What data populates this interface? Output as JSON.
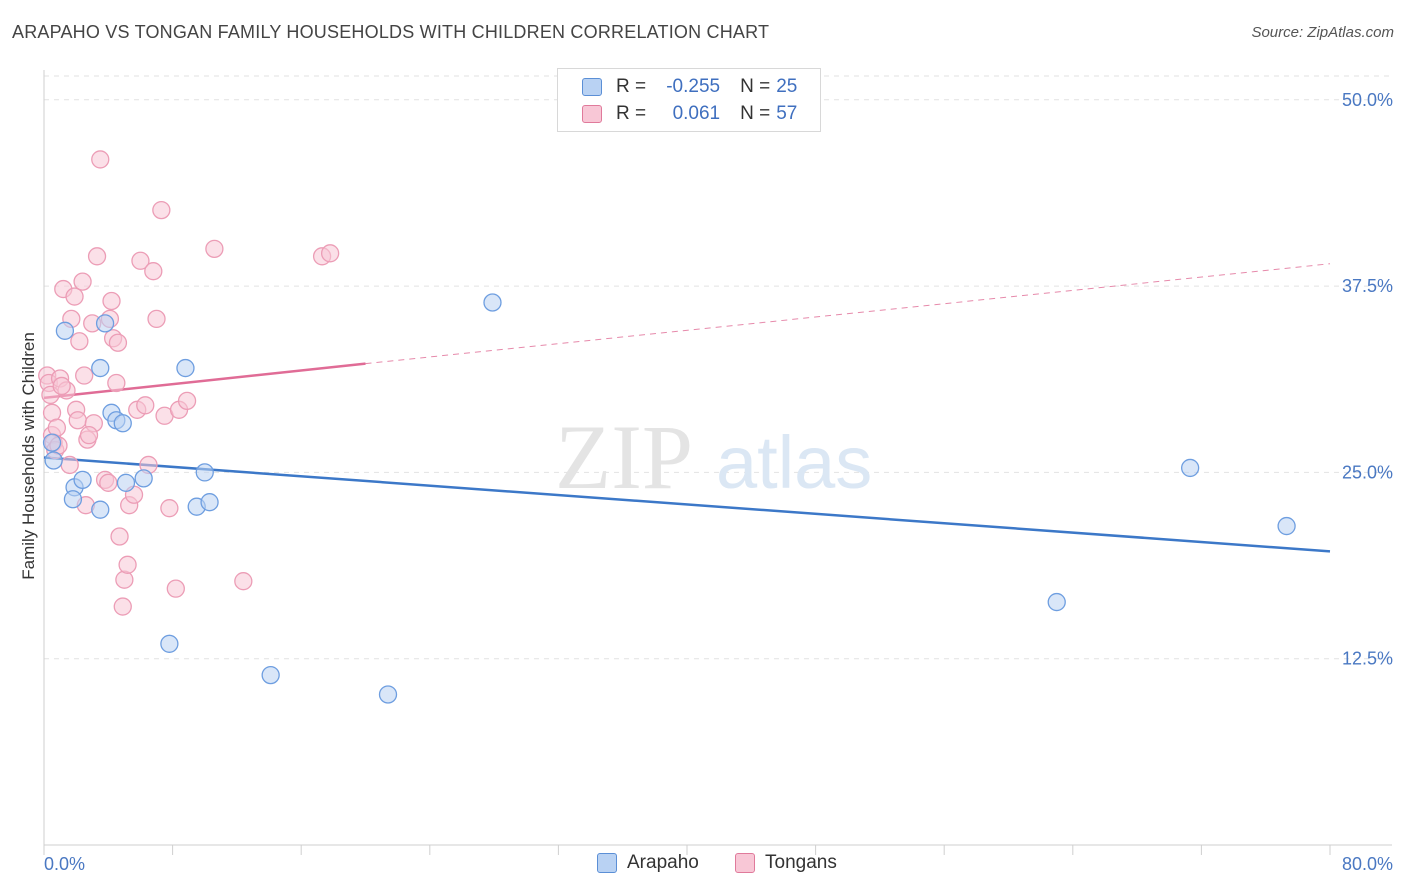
{
  "title": "ARAPAHO VS TONGAN FAMILY HOUSEHOLDS WITH CHILDREN CORRELATION CHART",
  "source": "Source: ZipAtlas.com",
  "watermark": {
    "zip": "ZIP",
    "atlas": "atlas"
  },
  "legend_box": {
    "rows": [
      {
        "r_label": "R =",
        "r_value": "-0.255",
        "n_label": "N =",
        "n_value": "25",
        "color": "#5b8fd6",
        "fill": "#b9d2f3"
      },
      {
        "r_label": "R =",
        "r_value": "0.061",
        "n_label": "N =",
        "n_value": "57",
        "color": "#e07a9b",
        "fill": "#f8c7d6"
      }
    ]
  },
  "chart_data": {
    "type": "scatter",
    "title": "ARAPAHO VS TONGAN FAMILY HOUSEHOLDS WITH CHILDREN CORRELATION CHART",
    "xlabel": "",
    "ylabel": "Family Households with Children",
    "xlim": [
      0,
      80
    ],
    "ylim": [
      0,
      52
    ],
    "x_tick_labels": [
      "0.0%",
      "80.0%"
    ],
    "y_ticks": [
      {
        "value": 12.5,
        "label": "12.5%"
      },
      {
        "value": 25.0,
        "label": "25.0%"
      },
      {
        "value": 37.5,
        "label": "37.5%"
      },
      {
        "value": 50.0,
        "label": "50.0%"
      }
    ],
    "series": [
      {
        "name": "Arapaho",
        "color": "#3c78c8",
        "fill": "#b9d2f3",
        "stroke": "#6e9ee0",
        "points": [
          [
            0.5,
            27.0
          ],
          [
            0.6,
            25.8
          ],
          [
            1.3,
            34.5
          ],
          [
            1.9,
            24.0
          ],
          [
            1.8,
            23.2
          ],
          [
            2.4,
            24.5
          ],
          [
            3.5,
            32.0
          ],
          [
            3.8,
            35.0
          ],
          [
            3.5,
            22.5
          ],
          [
            4.2,
            29.0
          ],
          [
            4.5,
            28.5
          ],
          [
            4.9,
            28.3
          ],
          [
            5.1,
            24.3
          ],
          [
            6.2,
            24.6
          ],
          [
            7.8,
            13.5
          ],
          [
            8.8,
            32.0
          ],
          [
            9.5,
            22.7
          ],
          [
            10.0,
            25.0
          ],
          [
            10.3,
            23.0
          ],
          [
            14.1,
            11.4
          ],
          [
            21.4,
            10.1
          ],
          [
            27.9,
            36.4
          ],
          [
            63.0,
            16.3
          ],
          [
            71.3,
            25.3
          ],
          [
            77.3,
            21.4
          ]
        ],
        "trend": {
          "x": [
            0,
            80
          ],
          "y": [
            26.0,
            19.7
          ],
          "dashed": false
        }
      },
      {
        "name": "Tongans",
        "color": "#e06c96",
        "fill": "#f8c7d6",
        "stroke": "#ec9db6",
        "points": [
          [
            0.2,
            31.5
          ],
          [
            0.3,
            31.0
          ],
          [
            0.4,
            30.2
          ],
          [
            0.5,
            29.0
          ],
          [
            0.5,
            27.5
          ],
          [
            0.6,
            27.0
          ],
          [
            0.7,
            26.5
          ],
          [
            0.8,
            28.0
          ],
          [
            1.0,
            31.3
          ],
          [
            1.2,
            37.3
          ],
          [
            1.4,
            30.5
          ],
          [
            1.6,
            25.5
          ],
          [
            1.7,
            35.3
          ],
          [
            1.9,
            36.8
          ],
          [
            2.0,
            29.2
          ],
          [
            2.1,
            28.5
          ],
          [
            2.2,
            33.8
          ],
          [
            2.4,
            37.8
          ],
          [
            2.5,
            31.5
          ],
          [
            2.6,
            22.8
          ],
          [
            2.7,
            27.2
          ],
          [
            3.0,
            35.0
          ],
          [
            3.1,
            28.3
          ],
          [
            3.3,
            39.5
          ],
          [
            3.5,
            46.0
          ],
          [
            3.8,
            24.5
          ],
          [
            4.0,
            24.3
          ],
          [
            4.1,
            35.3
          ],
          [
            4.2,
            36.5
          ],
          [
            4.3,
            34.0
          ],
          [
            4.5,
            31.0
          ],
          [
            4.6,
            33.7
          ],
          [
            4.7,
            20.7
          ],
          [
            4.9,
            16.0
          ],
          [
            5.0,
            17.8
          ],
          [
            5.2,
            18.8
          ],
          [
            5.3,
            22.8
          ],
          [
            5.6,
            23.5
          ],
          [
            5.8,
            29.2
          ],
          [
            6.0,
            39.2
          ],
          [
            6.3,
            29.5
          ],
          [
            6.5,
            25.5
          ],
          [
            6.8,
            38.5
          ],
          [
            7.0,
            35.3
          ],
          [
            7.3,
            42.6
          ],
          [
            7.5,
            28.8
          ],
          [
            7.8,
            22.6
          ],
          [
            8.2,
            17.2
          ],
          [
            8.4,
            29.2
          ],
          [
            8.9,
            29.8
          ],
          [
            10.6,
            40.0
          ],
          [
            12.4,
            17.7
          ],
          [
            17.3,
            39.5
          ],
          [
            17.8,
            39.7
          ],
          [
            2.8,
            27.5
          ],
          [
            1.1,
            30.8
          ],
          [
            0.9,
            26.8
          ]
        ],
        "trend": {
          "x": [
            0,
            20,
            80
          ],
          "y": [
            30.0,
            32.3,
            39.0
          ],
          "dashed_from": 20
        }
      }
    ],
    "legend": [
      "Arapaho",
      "Tongans"
    ]
  }
}
